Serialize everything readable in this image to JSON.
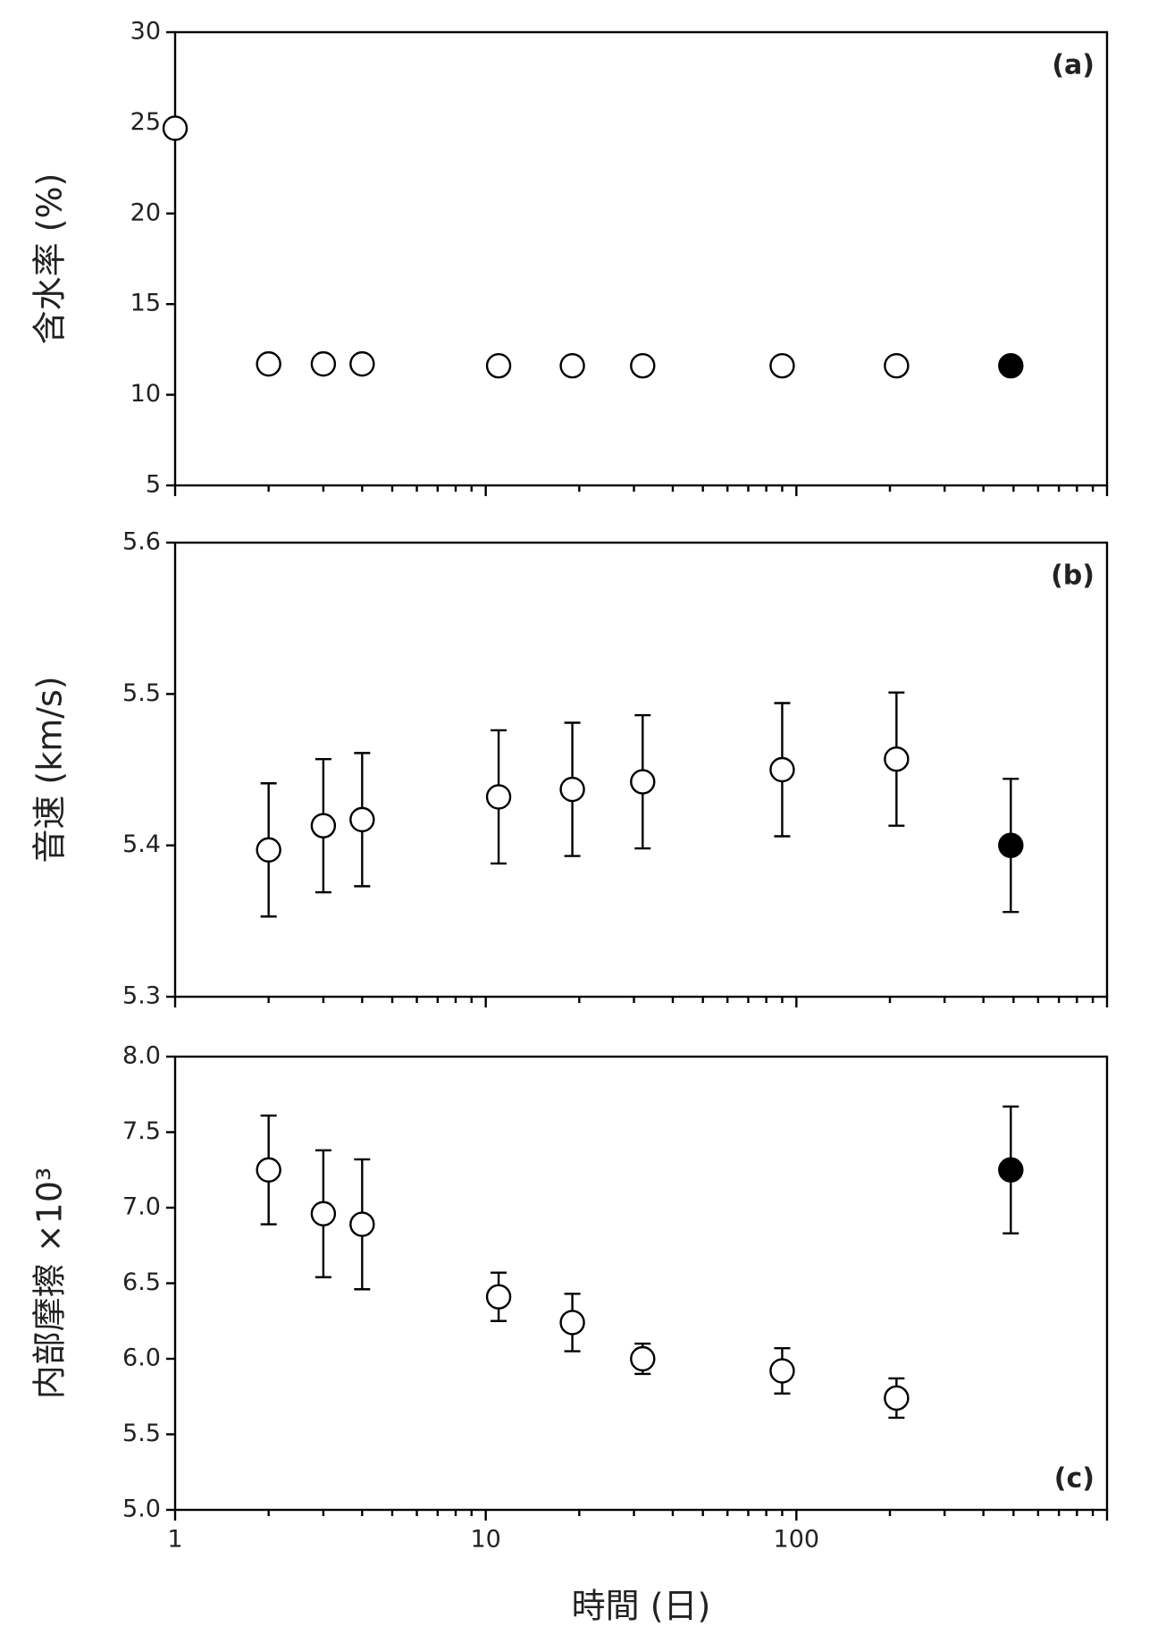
{
  "chart_data": [
    {
      "type": "scatter",
      "ylabel": "含水率 (%)",
      "annotation": "(a)",
      "ylim": [
        5,
        30
      ],
      "yticks": [
        5,
        10,
        15,
        20,
        25,
        30
      ],
      "series": [
        {
          "color": "#ffffff",
          "x": [
            1,
            2,
            3,
            4,
            11,
            19,
            32,
            90,
            210
          ],
          "values": [
            24.7,
            11.7,
            11.7,
            11.7,
            11.6,
            11.6,
            11.6,
            11.6,
            11.6
          ]
        },
        {
          "color": "#000000",
          "x": [
            490
          ],
          "values": [
            11.6
          ]
        }
      ]
    },
    {
      "type": "scatter",
      "ylabel": "音速 (km/s)",
      "annotation": "(b)",
      "ylim": [
        5.3,
        5.6
      ],
      "yticks": [
        5.3,
        5.4,
        5.5,
        5.6
      ],
      "series": [
        {
          "color": "#ffffff",
          "x": [
            2,
            3,
            4,
            11,
            19,
            32,
            90,
            210
          ],
          "values": [
            5.397,
            5.413,
            5.417,
            5.432,
            5.437,
            5.442,
            5.45,
            5.457
          ],
          "errors": [
            0.044,
            0.044,
            0.044,
            0.044,
            0.044,
            0.044,
            0.044,
            0.044
          ]
        },
        {
          "color": "#000000",
          "x": [
            490
          ],
          "values": [
            5.4
          ],
          "errors": [
            0.044
          ]
        }
      ]
    },
    {
      "type": "scatter",
      "ylabel": "内部摩擦 ×10³",
      "annotation": "(c)",
      "xlabel": "時間 (日)",
      "xscale": "log",
      "xlim": [
        1,
        1000
      ],
      "xticks": [
        1,
        10,
        100,
        {
          "value": 1000,
          "label": ""
        }
      ],
      "ylim": [
        5,
        8
      ],
      "yticks": [
        {
          "value": 5,
          "label": "5.0"
        },
        5.5,
        {
          "value": 6,
          "label": "6.0"
        },
        6.5,
        {
          "value": 7,
          "label": "7.0"
        },
        7.5,
        {
          "value": 8,
          "label": "8.0"
        }
      ],
      "series": [
        {
          "color": "#ffffff",
          "x": [
            2,
            3,
            4,
            11,
            19,
            32,
            90,
            210
          ],
          "values": [
            7.25,
            6.96,
            6.89,
            6.41,
            6.24,
            6.0,
            5.92,
            5.74
          ],
          "errors": [
            0.36,
            0.42,
            0.43,
            0.16,
            0.19,
            0.1,
            0.15,
            0.13
          ]
        },
        {
          "color": "#000000",
          "x": [
            490
          ],
          "values": [
            7.25
          ],
          "errors": [
            0.42
          ]
        }
      ]
    }
  ]
}
